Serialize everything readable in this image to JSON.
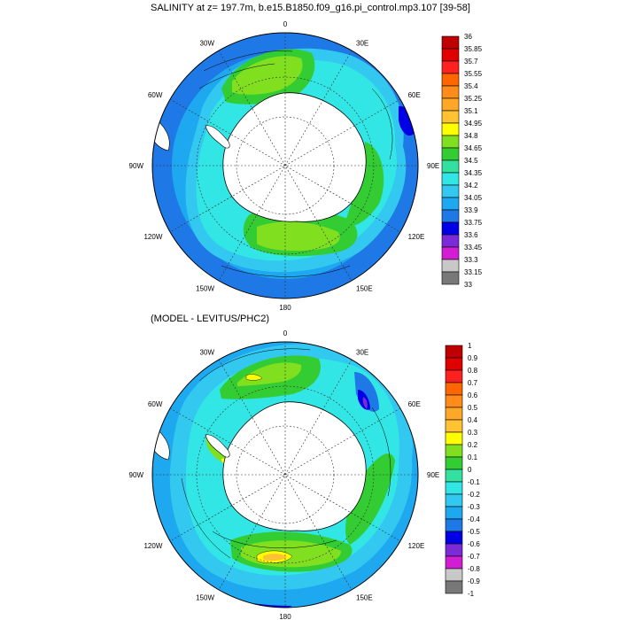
{
  "panels": [
    {
      "title": "SALINITY at z= 197.7m, b.e15.B1850.f09_g16.pi_control.mp3.107 [39-58]",
      "lon_labels": [
        "0",
        "30E",
        "60E",
        "90E",
        "120E",
        "150E",
        "180",
        "150W",
        "120W",
        "90W",
        "60W",
        "30W"
      ],
      "colorbar": {
        "labels": [
          "36",
          "35.85",
          "35.7",
          "35.55",
          "35.4",
          "35.25",
          "35.1",
          "34.95",
          "34.8",
          "34.65",
          "34.5",
          "34.35",
          "34.2",
          "34.05",
          "33.9",
          "33.75",
          "33.6",
          "33.45",
          "33.3",
          "33.15",
          "33"
        ],
        "colors": [
          "#c00000",
          "#e00000",
          "#ff2020",
          "#ff6600",
          "#ff8c1a",
          "#ffa726",
          "#ffc233",
          "#ffff00",
          "#80e020",
          "#33cc33",
          "#33e0a0",
          "#33e6e6",
          "#33c8f0",
          "#1ea8f0",
          "#1e78e6",
          "#0000e6",
          "#7a2ad6",
          "#d21ed2",
          "#c8c8c8",
          "#787878"
        ]
      }
    },
    {
      "title": "(MODEL - LEVITUS/PHC2)",
      "lon_labels": [
        "0",
        "30E",
        "60E",
        "90E",
        "120E",
        "150E",
        "180",
        "150W",
        "120W",
        "90W",
        "60W",
        "30W"
      ],
      "colorbar": {
        "labels": [
          "1",
          "0.9",
          "0.8",
          "0.7",
          "0.6",
          "0.5",
          "0.4",
          "0.3",
          "0.2",
          "0.1",
          "0",
          "-0.1",
          "-0.2",
          "-0.3",
          "-0.4",
          "-0.5",
          "-0.6",
          "-0.7",
          "-0.8",
          "-0.9",
          "-1"
        ],
        "colors": [
          "#c00000",
          "#e00000",
          "#ff2020",
          "#ff6600",
          "#ff8c1a",
          "#ffa726",
          "#ffc233",
          "#ffff00",
          "#80e020",
          "#33cc33",
          "#33e0a0",
          "#33e6e6",
          "#33c8f0",
          "#1ea8f0",
          "#1e78e6",
          "#0000e6",
          "#7a2ad6",
          "#d21ed2",
          "#c8c8c8",
          "#787878"
        ]
      }
    }
  ]
}
